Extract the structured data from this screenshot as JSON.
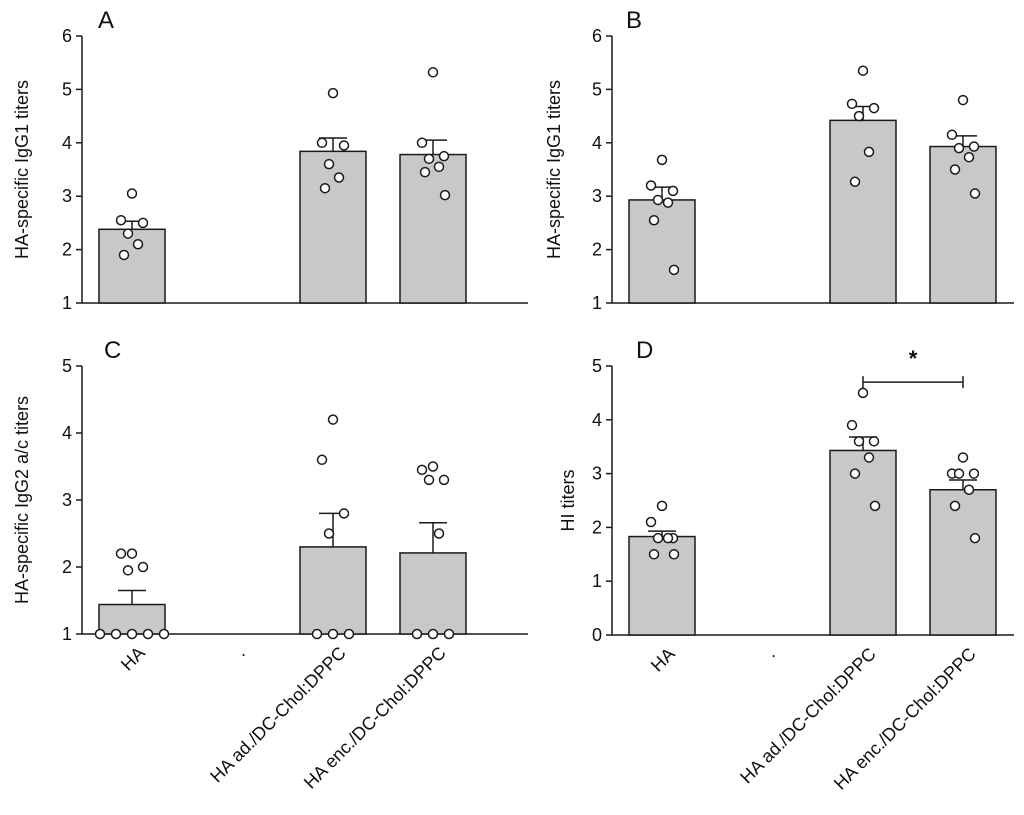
{
  "colors": {
    "bar_fill": "#c8c8c8",
    "bar_stroke": "#1a1a1a",
    "point_fill": "#ffffff",
    "axis": "#1a1a1a"
  },
  "chart_data": [
    {
      "type": "bar",
      "panel": "A",
      "categories": [
        "HA",
        ".",
        "HA ad./DC-Chol:DPPC",
        "HA enc./DC-Chol:DPPC"
      ],
      "values": [
        2.38,
        null,
        3.84,
        3.78
      ],
      "sem": [
        0.15,
        null,
        0.25,
        0.27
      ],
      "points": [
        [
          3.05,
          2.55,
          2.5,
          2.3,
          2.1,
          1.9
        ],
        [],
        [
          4.93,
          4.0,
          3.95,
          3.6,
          3.35,
          3.15
        ],
        [
          5.32,
          4.0,
          3.75,
          3.7,
          3.55,
          3.45,
          3.02
        ]
      ],
      "ylabel": "HA-specific IgG1 titers",
      "xlabel": "",
      "ylim": [
        1,
        6
      ],
      "yticks": [
        "1",
        "2",
        "3",
        "4",
        "5",
        "6"
      ]
    },
    {
      "type": "bar",
      "panel": "B",
      "categories": [
        "HA",
        ".",
        "HA ad./DC-Chol:DPPC",
        "HA enc./DC-Chol:DPPC"
      ],
      "values": [
        2.93,
        null,
        4.42,
        3.93
      ],
      "sem": [
        0.24,
        null,
        0.26,
        0.2
      ],
      "points": [
        [
          3.68,
          3.2,
          3.1,
          2.93,
          2.88,
          2.55,
          1.62
        ],
        [],
        [
          5.35,
          4.73,
          4.65,
          4.5,
          3.83,
          3.27
        ],
        [
          4.8,
          4.15,
          3.93,
          3.9,
          3.73,
          3.5,
          3.05
        ]
      ],
      "ylabel": "HA-specific IgG1 titers",
      "xlabel": "",
      "ylim": [
        1,
        6
      ],
      "yticks": [
        "1",
        "2",
        "3",
        "4",
        "5",
        "6"
      ]
    },
    {
      "type": "bar",
      "panel": "C",
      "categories": [
        "HA",
        ".",
        "HA ad./DC-Chol:DPPC",
        "HA enc./DC-Chol:DPPC"
      ],
      "values": [
        1.44,
        null,
        2.3,
        2.21
      ],
      "sem": [
        0.21,
        null,
        0.5,
        0.45
      ],
      "points": [
        [
          2.2,
          2.2,
          2.0,
          1.95,
          1.0,
          1.0,
          1.0,
          1.0,
          1.0
        ],
        [],
        [
          4.2,
          3.6,
          2.8,
          2.5,
          1.0,
          1.0,
          1.0
        ],
        [
          3.5,
          3.45,
          3.3,
          3.3,
          2.5,
          1.0,
          1.0,
          1.0
        ]
      ],
      "ylabel": "HA-specific IgG2 a/c titers",
      "xlabel": "",
      "ylim": [
        1,
        5
      ],
      "yticks": [
        "1",
        "2",
        "3",
        "4",
        "5"
      ]
    },
    {
      "type": "bar",
      "panel": "D",
      "categories": [
        "HA",
        ".",
        "HA ad./DC-Chol:DPPC",
        "HA enc./DC-Chol:DPPC"
      ],
      "values": [
        1.83,
        null,
        3.43,
        2.7
      ],
      "sem": [
        0.1,
        null,
        0.25,
        0.18
      ],
      "points": [
        [
          2.4,
          2.1,
          1.8,
          1.8,
          1.8,
          1.5,
          1.5
        ],
        [],
        [
          4.5,
          3.9,
          3.6,
          3.6,
          3.3,
          3.0,
          2.4
        ],
        [
          3.3,
          3.0,
          3.0,
          3.0,
          2.7,
          2.4,
          1.8
        ]
      ],
      "ylabel": "HI titers",
      "xlabel": "",
      "ylim": [
        0,
        5
      ],
      "yticks": [
        "0",
        "1",
        "2",
        "3",
        "4",
        "5"
      ],
      "annotation": {
        "label": "*",
        "from_category": 2,
        "to_category": 3,
        "y": 4.7
      }
    }
  ]
}
